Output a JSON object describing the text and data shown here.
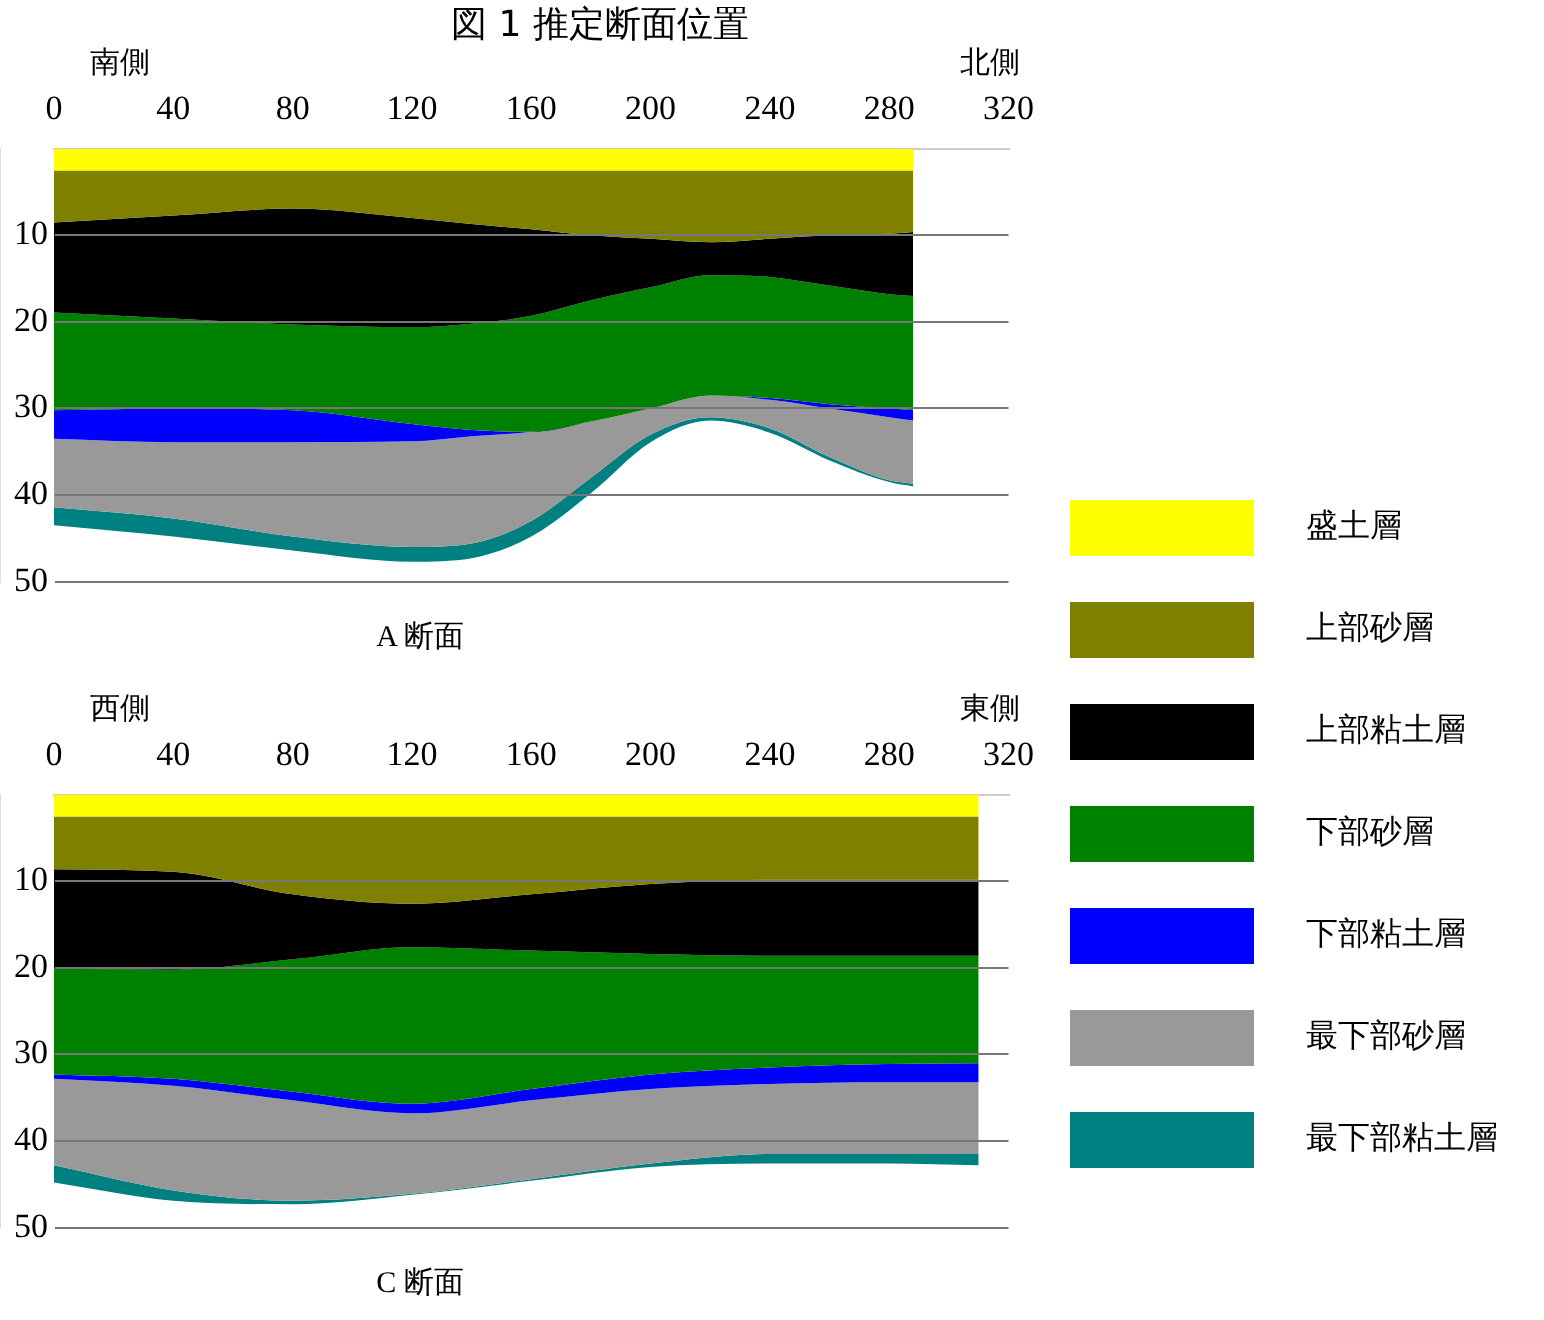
{
  "chart_data": [
    {
      "type": "area",
      "title": "図 1 推定断面位置",
      "stacked": true,
      "x": [
        0,
        40,
        80,
        120,
        140,
        160,
        180,
        200,
        220,
        240,
        260,
        280,
        288
      ],
      "xlim": [
        0,
        320
      ],
      "xticks": [
        0,
        40,
        80,
        120,
        160,
        200,
        240,
        280,
        320
      ],
      "ylim": [
        50,
        0
      ],
      "yticks": [
        10,
        20,
        30,
        40,
        50
      ],
      "grid": "y",
      "legend": "right",
      "annotations": [
        "南側",
        "北側",
        "A 断面"
      ],
      "series": [
        {
          "name": "盛土層",
          "color": "#ffff00",
          "values": [
            2.5,
            2.5,
            2.5,
            2.5,
            2.5,
            2.5,
            2.5,
            2.5,
            2.5,
            2.5,
            2.5,
            2.5,
            2.5
          ]
        },
        {
          "name": "上部砂層",
          "color": "#808000",
          "values": [
            6,
            5.2,
            4.4,
            5.5,
            6.2,
            6.8,
            7.5,
            7.9,
            8.3,
            7.9,
            7.5,
            7.3,
            7.1
          ]
        },
        {
          "name": "上部粘土層",
          "color": "#000000",
          "values": [
            10.4,
            11.9,
            13.4,
            12.6,
            11.5,
            10,
            7.5,
            5.6,
            3.8,
            4.4,
            5.8,
            7,
            7.4
          ]
        },
        {
          "name": "下部砂層",
          "color": "#008000",
          "values": [
            11.3,
            10.4,
            9.9,
            11.2,
            12.3,
            13.4,
            14,
            14,
            13.9,
            14,
            13.7,
            13.2,
            13.2
          ]
        },
        {
          "name": "下部粘土層",
          "color": "#0000ff",
          "values": [
            3.3,
            3.9,
            3.7,
            2,
            0.7,
            0,
            0,
            0,
            0,
            0.2,
            0.5,
            1,
            1.2
          ]
        },
        {
          "name": "最下部砂層",
          "color": "#999999",
          "values": [
            7.9,
            8.8,
            10.9,
            12.2,
            12.4,
            10.3,
            6.5,
            3,
            2.5,
            3.3,
            5.6,
            7.3,
            7.3
          ]
        },
        {
          "name": "最下部粘土層",
          "color": "#008080",
          "values": [
            2.1,
            2.1,
            1.6,
            1.7,
            1.7,
            1.8,
            1.8,
            0.9,
            0.4,
            0.5,
            0.4,
            0.2,
            0.3
          ]
        }
      ]
    },
    {
      "type": "area",
      "stacked": true,
      "x": [
        0,
        40,
        80,
        120,
        160,
        200,
        240,
        280,
        310
      ],
      "xlim": [
        0,
        320
      ],
      "xticks": [
        0,
        40,
        80,
        120,
        160,
        200,
        240,
        280,
        320
      ],
      "ylim": [
        50,
        0
      ],
      "yticks": [
        10,
        20,
        30,
        40,
        50
      ],
      "grid": "y",
      "annotations": [
        "西側",
        "東側",
        "C 断面"
      ],
      "series": [
        {
          "color": "#ffff00",
          "values": [
            2.5,
            2.5,
            2.5,
            2.5,
            2.5,
            2.5,
            2.5,
            2.5,
            2.5
          ]
        },
        {
          "color": "#808000",
          "values": [
            6.1,
            6.4,
            9,
            10.1,
            9,
            7.8,
            7.3,
            7.3,
            7.3
          ]
        },
        {
          "color": "#000000",
          "values": [
            11.5,
            11.3,
            7.5,
            5,
            6.5,
            8.1,
            8.8,
            8.8,
            8.8
          ]
        },
        {
          "color": "#008000",
          "values": [
            12.2,
            12.6,
            15.3,
            18.1,
            16,
            13.9,
            12.9,
            12.5,
            12.4
          ]
        },
        {
          "color": "#0000ff",
          "values": [
            0.5,
            0.8,
            1,
            1.1,
            1.3,
            1.7,
            1.9,
            2.1,
            2.2
          ]
        },
        {
          "color": "#999999",
          "values": [
            10,
            12.1,
            11.6,
            9.3,
            9.1,
            8.6,
            8.1,
            8.3,
            8.3
          ]
        },
        {
          "color": "#008080",
          "values": [
            2,
            1.2,
            0.4,
            0.1,
            0.2,
            0.4,
            1.1,
            1.1,
            1.3
          ]
        }
      ]
    }
  ]
}
